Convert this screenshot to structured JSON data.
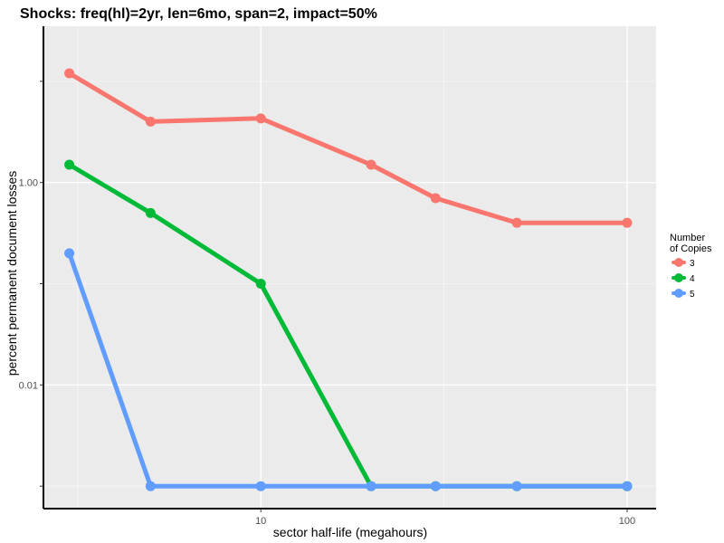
{
  "chart_data": {
    "type": "line",
    "title": "Shocks: freq(hl)=2yr, len=6mo, span=2, impact=50%",
    "xlabel": "sector half-life (megahours)",
    "ylabel": "percent permanent document losses",
    "x_scale": "log",
    "y_scale": "log",
    "x": [
      3,
      5,
      10,
      20,
      30,
      50,
      100
    ],
    "x_ticks": [
      10,
      100
    ],
    "x_tick_labels": [
      "10",
      "100"
    ],
    "y_ticks": [
      0.01,
      1
    ],
    "y_tick_labels": [
      "0.01",
      "1.00"
    ],
    "xlim": [
      2.55,
      120
    ],
    "ylim": [
      0.0006,
      35
    ],
    "grid": true,
    "legend": {
      "title": "Number\nof Copies",
      "position": "right"
    },
    "series": [
      {
        "name": "3",
        "color": "#F8766D",
        "values": [
          12,
          4.0,
          4.3,
          1.5,
          0.7,
          0.4,
          0.4
        ]
      },
      {
        "name": "4",
        "color": "#00BA38",
        "values": [
          1.5,
          0.5,
          0.1,
          0.001,
          0.001,
          0.001,
          0.001
        ]
      },
      {
        "name": "5",
        "color": "#619CFF",
        "values": [
          0.2,
          0.001,
          0.001,
          0.001,
          0.001,
          0.001,
          0.001
        ]
      }
    ]
  }
}
